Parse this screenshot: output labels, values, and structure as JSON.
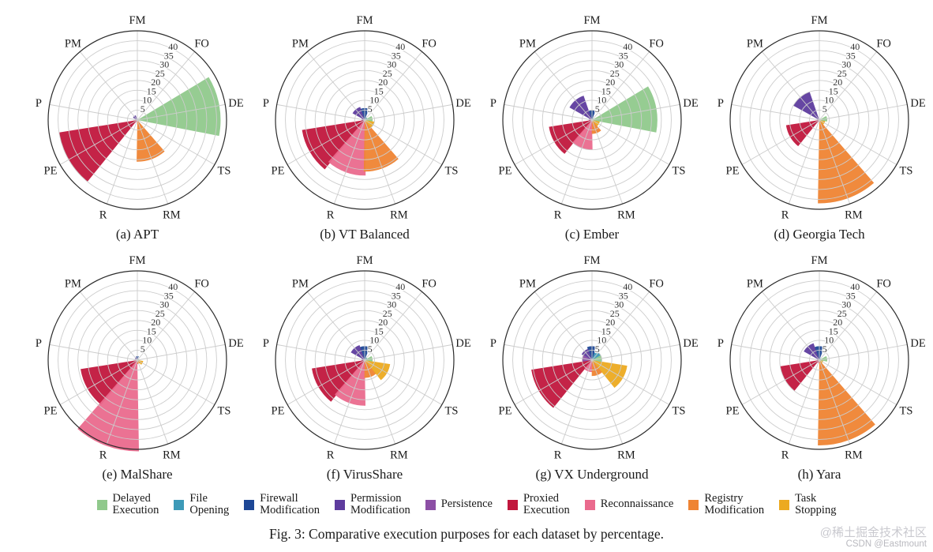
{
  "page": {
    "caption": "Fig. 3: Comparative execution purposes for each dataset by percentage.",
    "watermark": {
      "line1": "@稀土掘金技术社区",
      "line2": "CSDN @Eastmount"
    }
  },
  "axis": {
    "tick_values": [
      5,
      10,
      15,
      20,
      25,
      30,
      35,
      40
    ],
    "outer_value": 45,
    "tick_label_angle_deg": 64,
    "categories": [
      {
        "abbr": "FM",
        "key": "firewall_modification",
        "angle_deg": 90
      },
      {
        "abbr": "PM",
        "key": "permission_modification",
        "angle_deg": 130
      },
      {
        "abbr": "P",
        "key": "persistence",
        "angle_deg": 170
      },
      {
        "abbr": "PE",
        "key": "proxied_execution",
        "angle_deg": 210
      },
      {
        "abbr": "R",
        "key": "reconnaissance",
        "angle_deg": 250
      },
      {
        "abbr": "RM",
        "key": "registry_modification",
        "angle_deg": 290
      },
      {
        "abbr": "TS",
        "key": "task_stopping",
        "angle_deg": 330
      },
      {
        "abbr": "DE",
        "key": "delayed_execution",
        "angle_deg": 10
      },
      {
        "abbr": "FO",
        "key": "file_opening",
        "angle_deg": 50
      }
    ]
  },
  "colors": {
    "delayed_execution": "#90c98c",
    "file_opening": "#3d9ab8",
    "firewall_modification": "#1d4796",
    "permission_modification": "#5e3c9e",
    "persistence": "#8c4fa5",
    "proxied_execution": "#c1173d",
    "reconnaissance": "#ea6a8d",
    "registry_modification": "#ef8433",
    "task_stopping": "#ecaa20",
    "grid": "#cccccc",
    "outer_ring": "#2b2b2b",
    "text": "#1a1a1a"
  },
  "legend": [
    {
      "key": "delayed_execution",
      "lines": [
        "Delayed",
        "Execution"
      ]
    },
    {
      "key": "file_opening",
      "lines": [
        "File",
        "Opening"
      ]
    },
    {
      "key": "firewall_modification",
      "lines": [
        "Firewall",
        "Modification"
      ]
    },
    {
      "key": "permission_modification",
      "lines": [
        "Permission",
        "Modification"
      ]
    },
    {
      "key": "persistence",
      "lines": [
        "Persistence"
      ]
    },
    {
      "key": "proxied_execution",
      "lines": [
        "Proxied",
        "Execution"
      ]
    },
    {
      "key": "reconnaissance",
      "lines": [
        "Reconnaissance"
      ]
    },
    {
      "key": "registry_modification",
      "lines": [
        "Registry",
        "Modification"
      ]
    },
    {
      "key": "task_stopping",
      "lines": [
        "Task",
        "Stopping"
      ]
    }
  ],
  "chart_data": [
    {
      "type": "rose",
      "title": "(a) APT",
      "units": "percent",
      "values": {
        "FM": 0.5,
        "PM": 2.5,
        "P": 0.8,
        "PE": 40,
        "R": 1.2,
        "RM": 21,
        "TS": 0.8,
        "DE": 42,
        "FO": 0.4
      }
    },
    {
      "type": "rose",
      "title": "(b) VT Balanced",
      "units": "percent",
      "values": {
        "FM": 6,
        "PM": 7,
        "P": 1.5,
        "PE": 32,
        "R": 28,
        "RM": 26,
        "TS": 5,
        "DE": 4,
        "FO": 1.5
      }
    },
    {
      "type": "rose",
      "title": "(c) Ember",
      "units": "percent",
      "values": {
        "FM": 5,
        "PM": 13,
        "P": 1.5,
        "PE": 22,
        "R": 15,
        "RM": 7,
        "TS": 4,
        "DE": 33,
        "FO": 1
      }
    },
    {
      "type": "rose",
      "title": "(d) Georgia Tech",
      "units": "percent",
      "values": {
        "FM": 0.5,
        "PM": 15,
        "P": 1,
        "PE": 17,
        "R": 1,
        "RM": 42,
        "TS": 3,
        "DE": 4,
        "FO": 0.5
      }
    },
    {
      "type": "rose",
      "title": "(e) MalShare",
      "units": "percent",
      "values": {
        "FM": 2,
        "PM": 1.5,
        "P": 0.5,
        "PE": 29,
        "R": 46,
        "RM": 2,
        "TS": 3,
        "DE": 1,
        "FO": 0.8
      }
    },
    {
      "type": "rose",
      "title": "(f) VirusShare",
      "units": "percent",
      "values": {
        "FM": 7,
        "PM": 8,
        "P": 1.5,
        "PE": 27,
        "R": 23,
        "RM": 9,
        "TS": 13,
        "DE": 4,
        "FO": 1.5
      }
    },
    {
      "type": "rose",
      "title": "(g) VX Underground",
      "units": "percent",
      "values": {
        "FM": 7,
        "PM": 6,
        "P": 5,
        "PE": 31,
        "R": 6,
        "RM": 8,
        "TS": 18,
        "DE": 5,
        "FO": 5
      }
    },
    {
      "type": "rose",
      "title": "(h) Yara",
      "units": "percent",
      "values": {
        "FM": 7,
        "PM": 9,
        "P": 1,
        "PE": 20,
        "R": 1.5,
        "RM": 43,
        "TS": 2,
        "DE": 4,
        "FO": 1
      }
    }
  ]
}
